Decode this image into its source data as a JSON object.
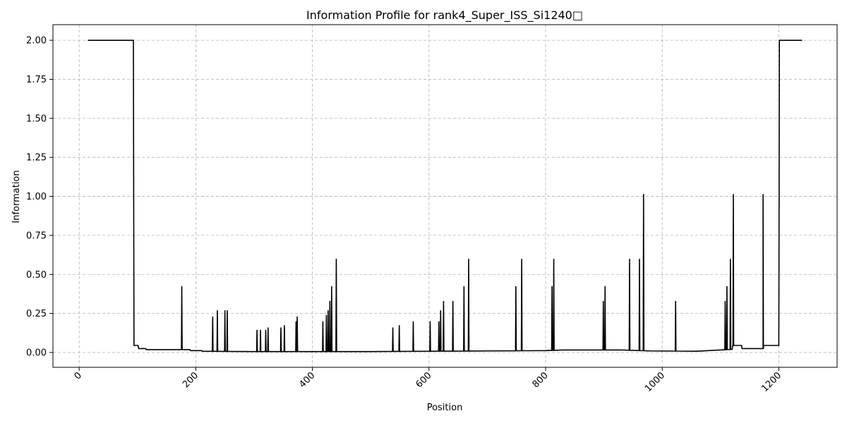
{
  "chart_data": {
    "type": "line",
    "title": "Information Profile for rank4_Super_ISS_Si1240□",
    "xlabel": "Position",
    "ylabel": "Information",
    "xlim": [
      -45,
      1300
    ],
    "ylim": [
      -0.095,
      2.1
    ],
    "xticks": [
      0,
      200,
      400,
      600,
      800,
      1000,
      1200
    ],
    "yticks": [
      0.0,
      0.25,
      0.5,
      0.75,
      1.0,
      1.25,
      1.5,
      1.75,
      2.0
    ],
    "ytick_labels": [
      "0.00",
      "0.25",
      "0.50",
      "0.75",
      "1.00",
      "1.25",
      "1.50",
      "1.75",
      "2.00"
    ],
    "grid": true,
    "line_color": "#000000",
    "series": [
      {
        "baseline": [
          [
            15,
            2.0
          ],
          [
            93,
            2.0
          ],
          [
            94,
            0.045
          ],
          [
            101,
            0.045
          ],
          [
            102,
            0.025
          ],
          [
            114,
            0.025
          ],
          [
            115,
            0.018
          ],
          [
            190,
            0.018
          ],
          [
            191,
            0.012
          ],
          [
            210,
            0.012
          ],
          [
            211,
            0.008
          ],
          [
            300,
            0.006
          ],
          [
            500,
            0.006
          ],
          [
            700,
            0.01
          ],
          [
            800,
            0.012
          ],
          [
            830,
            0.016
          ],
          [
            930,
            0.016
          ],
          [
            980,
            0.01
          ],
          [
            1060,
            0.008
          ],
          [
            1120,
            0.02
          ],
          [
            1121,
            0.045
          ],
          [
            1136,
            0.045
          ],
          [
            1137,
            0.025
          ],
          [
            1173,
            0.025
          ],
          [
            1174,
            0.045
          ],
          [
            1200,
            0.045
          ],
          [
            1201,
            2.0
          ],
          [
            1240,
            2.0
          ]
        ],
        "spikes": [
          [
            176,
            0.425
          ],
          [
            229,
            0.23
          ],
          [
            237,
            0.27
          ],
          [
            250,
            0.27
          ],
          [
            254,
            0.27
          ],
          [
            305,
            0.145
          ],
          [
            311,
            0.145
          ],
          [
            320,
            0.145
          ],
          [
            324,
            0.16
          ],
          [
            346,
            0.16
          ],
          [
            352,
            0.175
          ],
          [
            372,
            0.2
          ],
          [
            374,
            0.23
          ],
          [
            418,
            0.2
          ],
          [
            424,
            0.24
          ],
          [
            427,
            0.27
          ],
          [
            430,
            0.33
          ],
          [
            433,
            0.425
          ],
          [
            441,
            0.6
          ],
          [
            538,
            0.16
          ],
          [
            549,
            0.175
          ],
          [
            573,
            0.2
          ],
          [
            602,
            0.2
          ],
          [
            617,
            0.2
          ],
          [
            620,
            0.27
          ],
          [
            625,
            0.33
          ],
          [
            641,
            0.33
          ],
          [
            660,
            0.425
          ],
          [
            668,
            0.6
          ],
          [
            749,
            0.425
          ],
          [
            759,
            0.6
          ],
          [
            811,
            0.425
          ],
          [
            814,
            0.6
          ],
          [
            899,
            0.33
          ],
          [
            902,
            0.425
          ],
          [
            944,
            0.6
          ],
          [
            961,
            0.6
          ],
          [
            968,
            1.015
          ],
          [
            1023,
            0.33
          ],
          [
            1108,
            0.33
          ],
          [
            1111,
            0.425
          ],
          [
            1117,
            0.6
          ],
          [
            1122,
            1.015
          ],
          [
            1173,
            1.015
          ]
        ]
      }
    ]
  }
}
